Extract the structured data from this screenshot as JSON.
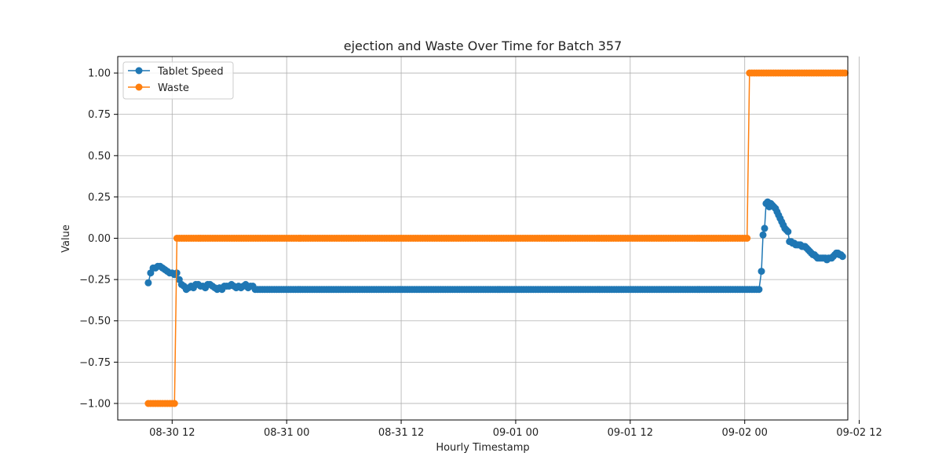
{
  "chart_data": {
    "type": "line",
    "title": "ejection and Waste Over Time for Batch 357",
    "xlabel": "Hourly Timestamp",
    "ylabel": "Value",
    "x_range_hours": [
      -5.7,
      70.8
    ],
    "ylim": [
      -1.1,
      1.1
    ],
    "x_ticks": [
      {
        "hours": 0,
        "label": "08-30 12"
      },
      {
        "hours": 12,
        "label": "08-31 00"
      },
      {
        "hours": 24,
        "label": "08-31 12"
      },
      {
        "hours": 36,
        "label": "09-01 00"
      },
      {
        "hours": 48,
        "label": "09-01 12"
      },
      {
        "hours": 60,
        "label": "09-02 00"
      },
      {
        "hours": 72,
        "label": "09-02 12"
      }
    ],
    "y_ticks": [
      {
        "value": 1.0,
        "label": "1.00"
      },
      {
        "value": 0.75,
        "label": "0.75"
      },
      {
        "value": 0.5,
        "label": "0.50"
      },
      {
        "value": 0.25,
        "label": "0.25"
      },
      {
        "value": 0.0,
        "label": "0.00"
      },
      {
        "value": -0.25,
        "label": "−0.25"
      },
      {
        "value": -0.5,
        "label": "−0.50"
      },
      {
        "value": -0.75,
        "label": "−0.75"
      },
      {
        "value": -1.0,
        "label": "−1.00"
      }
    ],
    "grid": true,
    "legend_position": "top-left",
    "series": [
      {
        "name": "Tablet Speed",
        "color": "#1f77b4",
        "segments": [
          {
            "x_start": -2.5,
            "x_end": 61.5,
            "values": [
              -0.27,
              -0.21,
              -0.18,
              -0.18,
              -0.17,
              -0.17,
              -0.18,
              -0.19,
              -0.2,
              -0.21,
              -0.21,
              -0.22,
              -0.21,
              -0.25,
              -0.28,
              -0.29,
              -0.31,
              -0.3,
              -0.29,
              -0.3,
              -0.28,
              -0.28,
              -0.29,
              -0.29,
              -0.3,
              -0.28,
              -0.28,
              -0.29,
              -0.3,
              -0.31,
              -0.3,
              -0.31,
              -0.29,
              -0.29,
              -0.29,
              -0.28,
              -0.29,
              -0.3,
              -0.29,
              -0.3,
              -0.29,
              -0.28,
              -0.3,
              -0.29,
              -0.29,
              -0.31,
              -0.31,
              -0.31,
              -0.31,
              -0.31,
              -0.31,
              -0.31,
              -0.31,
              -0.31,
              -0.31,
              -0.31,
              -0.31,
              -0.31,
              -0.31,
              -0.31,
              -0.31,
              -0.31,
              -0.31,
              -0.31,
              -0.31,
              -0.31,
              -0.31,
              -0.31,
              -0.31,
              -0.31,
              -0.31,
              -0.31,
              -0.31,
              -0.31,
              -0.31,
              -0.31,
              -0.31,
              -0.31,
              -0.31,
              -0.31,
              -0.31,
              -0.31,
              -0.31,
              -0.31,
              -0.31,
              -0.31,
              -0.31,
              -0.31,
              -0.31,
              -0.31,
              -0.31,
              -0.31,
              -0.31,
              -0.31,
              -0.31,
              -0.31,
              -0.31,
              -0.31,
              -0.31,
              -0.31,
              -0.31,
              -0.31,
              -0.31,
              -0.31,
              -0.31,
              -0.31,
              -0.31,
              -0.31,
              -0.31,
              -0.31,
              -0.31,
              -0.31,
              -0.31,
              -0.31,
              -0.31,
              -0.31,
              -0.31,
              -0.31,
              -0.31,
              -0.31,
              -0.31,
              -0.31,
              -0.31,
              -0.31,
              -0.31,
              -0.31,
              -0.31,
              -0.31,
              -0.31,
              -0.31,
              -0.31,
              -0.31,
              -0.31,
              -0.31,
              -0.31,
              -0.31,
              -0.31,
              -0.31,
              -0.31,
              -0.31,
              -0.31,
              -0.31,
              -0.31,
              -0.31,
              -0.31,
              -0.31,
              -0.31,
              -0.31,
              -0.31,
              -0.31,
              -0.31,
              -0.31,
              -0.31,
              -0.31,
              -0.31,
              -0.31,
              -0.31,
              -0.31,
              -0.31,
              -0.31,
              -0.31,
              -0.31,
              -0.31,
              -0.31,
              -0.31,
              -0.31,
              -0.31,
              -0.31,
              -0.31,
              -0.31,
              -0.31,
              -0.31,
              -0.31,
              -0.31,
              -0.31,
              -0.31,
              -0.31,
              -0.31,
              -0.31,
              -0.31,
              -0.31,
              -0.31,
              -0.31,
              -0.31,
              -0.31,
              -0.31,
              -0.31,
              -0.31,
              -0.31,
              -0.31,
              -0.31,
              -0.31,
              -0.31,
              -0.31,
              -0.31,
              -0.31,
              -0.31,
              -0.31,
              -0.31,
              -0.31,
              -0.31,
              -0.31,
              -0.31,
              -0.31,
              -0.31,
              -0.31,
              -0.31,
              -0.31,
              -0.31,
              -0.31,
              -0.31,
              -0.31,
              -0.31,
              -0.31,
              -0.31,
              -0.31,
              -0.31,
              -0.31,
              -0.31,
              -0.31,
              -0.31,
              -0.31,
              -0.31,
              -0.31,
              -0.31,
              -0.31,
              -0.31,
              -0.31,
              -0.31,
              -0.31,
              -0.31,
              -0.31,
              -0.31,
              -0.31,
              -0.31,
              -0.31,
              -0.31,
              -0.31,
              -0.31,
              -0.31,
              -0.31,
              -0.31,
              -0.31,
              -0.31,
              -0.31,
              -0.31,
              -0.31,
              -0.31,
              -0.31,
              -0.31,
              -0.31,
              -0.31,
              -0.31,
              -0.31,
              -0.31,
              -0.31,
              -0.31,
              -0.31
            ]
          },
          {
            "x_start": 61.75,
            "x_end": 70.25,
            "values": [
              -0.2,
              0.02,
              0.06,
              0.21,
              0.22,
              0.19,
              0.21,
              0.2,
              0.19,
              0.18,
              0.16,
              0.14,
              0.12,
              0.1,
              0.08,
              0.06,
              0.05,
              0.04,
              -0.02,
              -0.02,
              -0.03,
              -0.03,
              -0.04,
              -0.04,
              -0.04,
              -0.04,
              -0.05,
              -0.05,
              -0.05,
              -0.06,
              -0.07,
              -0.08,
              -0.09,
              -0.1,
              -0.1,
              -0.11,
              -0.12,
              -0.12,
              -0.12,
              -0.12,
              -0.12,
              -0.12,
              -0.13,
              -0.12,
              -0.12,
              -0.12,
              -0.11,
              -0.1,
              -0.09,
              -0.09,
              -0.1,
              -0.1,
              -0.11
            ]
          }
        ]
      },
      {
        "name": "Waste",
        "color": "#ff7f0e",
        "segments": [
          {
            "x_start": -2.5,
            "x_end": 0.5,
            "value": -1
          },
          {
            "x_start": 0.5,
            "x_end": 60.5,
            "value": 0
          },
          {
            "x_start": 60.5,
            "x_end": 70.5,
            "value": 1
          }
        ]
      }
    ]
  }
}
